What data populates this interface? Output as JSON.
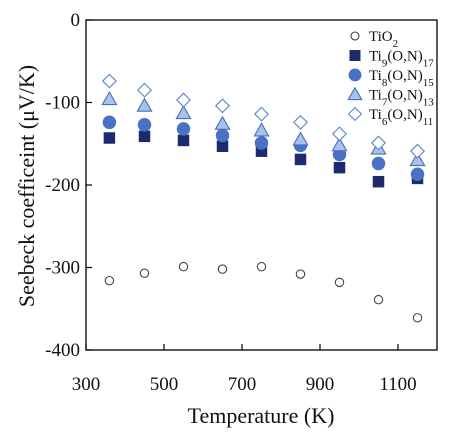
{
  "chart_data": {
    "type": "scatter",
    "xlabel": "Temperature (K)",
    "ylabel": "Seebeck coefficeint (μV/K)",
    "xlim": [
      300,
      1200
    ],
    "ylim": [
      -400,
      0
    ],
    "xticks": [
      300,
      500,
      700,
      900,
      1100
    ],
    "yticks": [
      0,
      -100,
      -200,
      -300,
      -400
    ],
    "xtick_labels": [
      "300",
      "500",
      "700",
      "900",
      "1100"
    ],
    "ytick_labels": [
      "0",
      "-100",
      "-200",
      "-300",
      "-400"
    ],
    "grid": false,
    "legend_position": "top-right",
    "series": [
      {
        "name": "TiO2",
        "label_main": "TiO",
        "label_sub": "2",
        "marker": "circle-open",
        "fill": "#ffffff",
        "stroke": "#444444",
        "x": [
          360,
          450,
          550,
          650,
          750,
          850,
          950,
          1050,
          1150
        ],
        "y": [
          -316,
          -307,
          -299,
          -302,
          -299,
          -308,
          -318,
          -339,
          -361
        ]
      },
      {
        "name": "Ti9(O,N)17",
        "label_main": "Ti",
        "label_sub": "9",
        "label_mid": "(O,N)",
        "label_sub2": "17",
        "marker": "square",
        "fill": "#1f2a6e",
        "stroke": "#1f2a6e",
        "x": [
          360,
          450,
          550,
          650,
          750,
          850,
          950,
          1050,
          1150
        ],
        "y": [
          -143,
          -141,
          -146,
          -153,
          -159,
          -169,
          -179,
          -196,
          -192
        ]
      },
      {
        "name": "Ti8(O,N)15",
        "label_main": "Ti",
        "label_sub": "8",
        "label_mid": "(O,N)",
        "label_sub2": "15",
        "marker": "circle",
        "fill": "#4a72c4",
        "stroke": "#4a72c4",
        "x": [
          360,
          450,
          550,
          650,
          750,
          850,
          950,
          1050,
          1150
        ],
        "y": [
          -124,
          -127,
          -132,
          -140,
          -149,
          -152,
          -163,
          -174,
          -187
        ]
      },
      {
        "name": "Ti7(O,N)13",
        "label_main": "Ti",
        "label_sub": "7",
        "label_mid": "(O,N)",
        "label_sub2": "13",
        "marker": "triangle",
        "fill": "#a9c2ec",
        "stroke": "#4a6fb5",
        "x": [
          360,
          450,
          550,
          650,
          750,
          850,
          950,
          1050,
          1150
        ],
        "y": [
          -96,
          -104,
          -113,
          -126,
          -134,
          -145,
          -152,
          -156,
          -170
        ]
      },
      {
        "name": "Ti6(O,N)11",
        "label_main": "Ti",
        "label_sub": "6",
        "label_mid": "(O,N)",
        "label_sub2": "11",
        "marker": "diamond",
        "fill": "#ffffff",
        "stroke": "#5b84c9",
        "x": [
          360,
          450,
          550,
          650,
          750,
          850,
          950,
          1050,
          1150
        ],
        "y": [
          -74,
          -85,
          -97,
          -104,
          -114,
          -124,
          -138,
          -149,
          -159
        ]
      }
    ]
  }
}
